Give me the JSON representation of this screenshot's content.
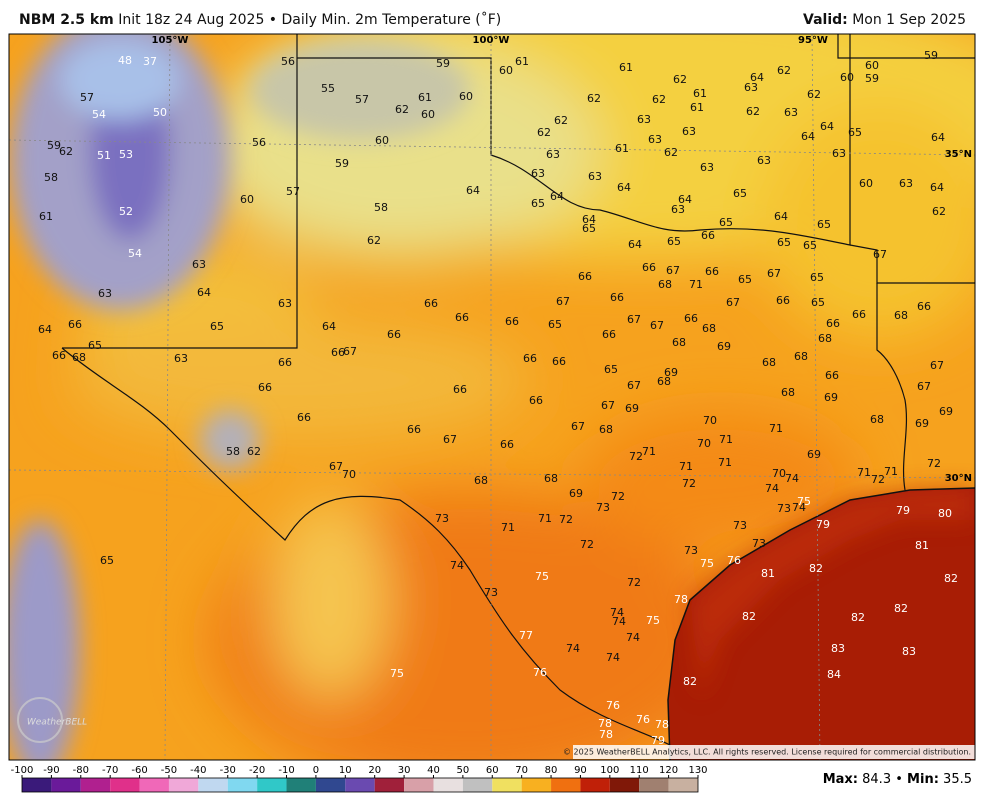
{
  "header": {
    "model": "NBM 2.5 km",
    "description": "Init 18z 24 Aug 2025 • Daily Min. 2m Temperature (˚F)",
    "valid_label": "Valid:",
    "valid": "Mon 1 Sep 2025"
  },
  "map": {
    "grid_labels": [
      "105°W",
      "100°W",
      "95°W",
      "35°N",
      "30°N"
    ],
    "copyright": "© 2025 WeatherBELL Analytics, LLC. All rights reserved. License required for commercial distribution.",
    "logo": "WeatherBELL",
    "labels": [
      48,
      37,
      56,
      59,
      60,
      61,
      61,
      62,
      64,
      62,
      63,
      61,
      60,
      59,
      60,
      59,
      57,
      54,
      50,
      55,
      57,
      62,
      61,
      60,
      60,
      62,
      62,
      61,
      62,
      63,
      62,
      62,
      62,
      63,
      63,
      63,
      64,
      64,
      65,
      64,
      59,
      62,
      51,
      53,
      56,
      60,
      63,
      61,
      62,
      63,
      63,
      63,
      58,
      59,
      63,
      63,
      60,
      63,
      64,
      64,
      64,
      65,
      57,
      60,
      64,
      65,
      64,
      63,
      52,
      58,
      62,
      61,
      64,
      65,
      65,
      64,
      65,
      66,
      64,
      65,
      65,
      65,
      62,
      67,
      54,
      63,
      66,
      66,
      67,
      66,
      65,
      67,
      65,
      68,
      71,
      63,
      64,
      63,
      66,
      67,
      66,
      67,
      66,
      65,
      65,
      66,
      64,
      64,
      66,
      66,
      65,
      67,
      67,
      66,
      68,
      66,
      66,
      68,
      66,
      66,
      66,
      68,
      69,
      68,
      65,
      66,
      68,
      63,
      66,
      67,
      66,
      66,
      66,
      68,
      68,
      65,
      69,
      68,
      67,
      66,
      67,
      67,
      66,
      66,
      66,
      67,
      69,
      68,
      69,
      69,
      66,
      66,
      67,
      66,
      67,
      68,
      70,
      71,
      68,
      69,
      58,
      62,
      72,
      71,
      70,
      71,
      69,
      72,
      71,
      71,
      67,
      70,
      68,
      68,
      72,
      70,
      74,
      71,
      72,
      71,
      74,
      69,
      72,
      73,
      75,
      74,
      73,
      73,
      71,
      71,
      72,
      73,
      79,
      79,
      80,
      72,
      73,
      73,
      81,
      65,
      74,
      75,
      75,
      76,
      81,
      82,
      82,
      72,
      73,
      78,
      74,
      74,
      75,
      82,
      82,
      82,
      77,
      74,
      74,
      74,
      83,
      83,
      75,
      76,
      84,
      82,
      76,
      78,
      76,
      78,
      78,
      79
    ]
  },
  "colorbar": {
    "ticks": [
      -100,
      -90,
      -80,
      -70,
      -60,
      -50,
      -40,
      -30,
      -20,
      -10,
      0,
      10,
      20,
      30,
      40,
      50,
      60,
      70,
      80,
      90,
      100,
      110,
      120,
      130
    ]
  },
  "stats": {
    "max_label": "Max:",
    "max": 84.3,
    "separator": "•",
    "min_label": "Min:",
    "min": 35.5
  }
}
